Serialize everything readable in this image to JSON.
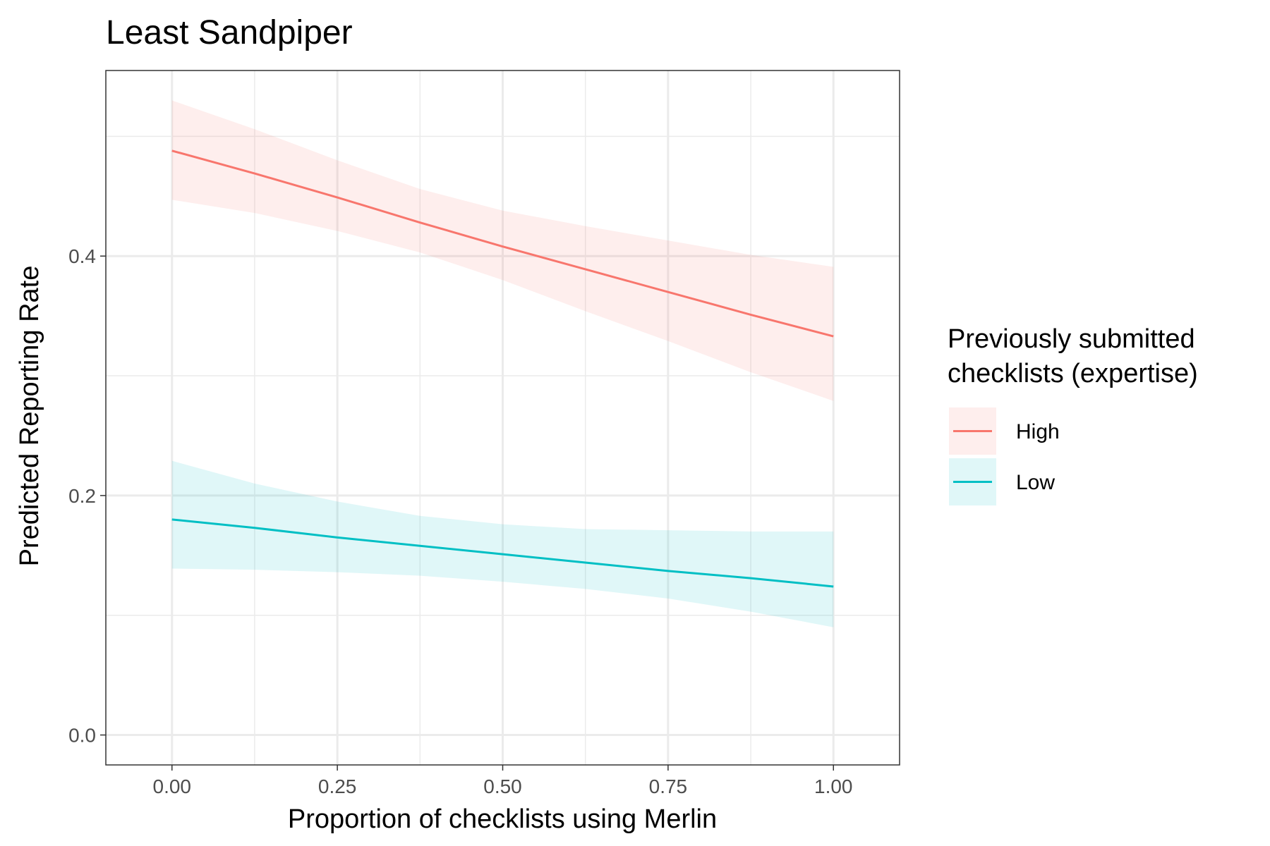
{
  "chart_data": {
    "type": "line",
    "title": "Least Sandpiper",
    "xlabel": "Proportion of checklists using Merlin",
    "ylabel": "Predicted Reporting Rate",
    "xlim": [
      -0.1,
      1.1
    ],
    "ylim": [
      -0.025,
      0.555
    ],
    "x_ticks": [
      0.0,
      0.25,
      0.5,
      0.75,
      1.0
    ],
    "x_tick_labels": [
      "0.00",
      "0.25",
      "0.50",
      "0.75",
      "1.00"
    ],
    "y_ticks": [
      0.0,
      0.2,
      0.4
    ],
    "y_tick_labels": [
      "0.0",
      "0.2",
      "0.4"
    ],
    "grid": true,
    "legend": {
      "title_lines": [
        "Previously submitted",
        "checklists (expertise)"
      ],
      "placement": "right"
    },
    "x": [
      0.0,
      0.125,
      0.25,
      0.375,
      0.5,
      0.625,
      0.75,
      0.875,
      1.0
    ],
    "series": [
      {
        "name": "High",
        "color": "#F8766D",
        "y": [
          0.488,
          0.469,
          0.449,
          0.428,
          0.408,
          0.389,
          0.37,
          0.351,
          0.333
        ],
        "lower": [
          0.447,
          0.436,
          0.421,
          0.403,
          0.38,
          0.354,
          0.329,
          0.303,
          0.279
        ],
        "upper": [
          0.53,
          0.506,
          0.48,
          0.456,
          0.438,
          0.425,
          0.413,
          0.401,
          0.391
        ]
      },
      {
        "name": "Low",
        "color": "#00BFC4",
        "y": [
          0.18,
          0.173,
          0.165,
          0.158,
          0.151,
          0.144,
          0.137,
          0.131,
          0.124
        ],
        "lower": [
          0.139,
          0.138,
          0.136,
          0.133,
          0.128,
          0.122,
          0.114,
          0.103,
          0.09
        ],
        "upper": [
          0.229,
          0.21,
          0.195,
          0.183,
          0.176,
          0.172,
          0.171,
          0.17,
          0.17
        ]
      }
    ]
  }
}
